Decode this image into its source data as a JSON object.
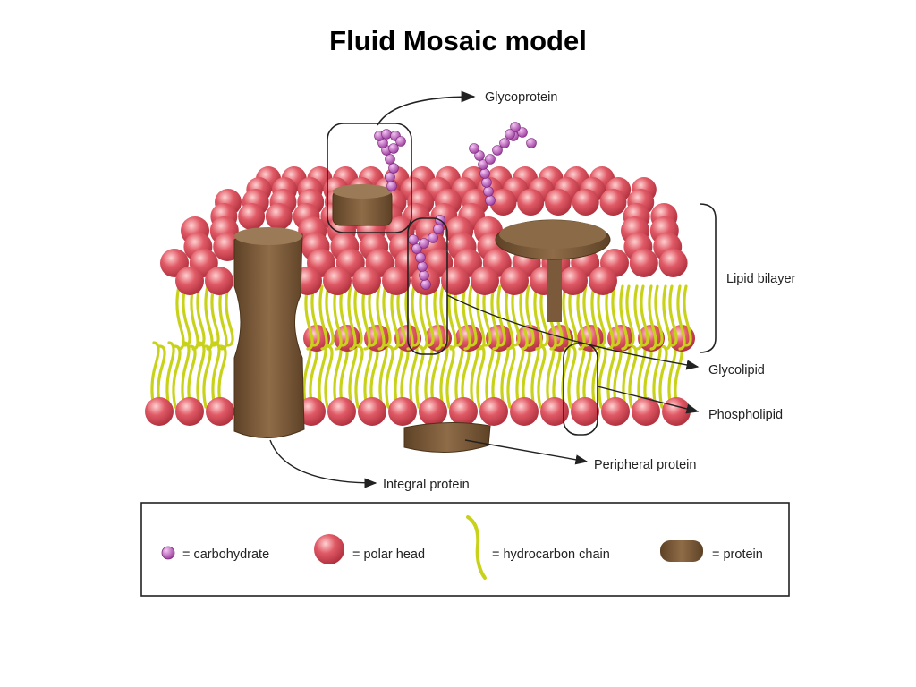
{
  "title": "Fluid Mosaic model",
  "labels": {
    "glycoprotein": "Glycoprotein",
    "lipid_bilayer": "Lipid bilayer",
    "glycolipid": "Glycolipid",
    "phospholipid": "Phospholipid",
    "peripheral_protein": "Peripheral protein",
    "integral_protein": "Integral protein"
  },
  "legend": {
    "carbohydrate": "= carbohydrate",
    "polar_head": "= polar head",
    "hydrocarbon_chain": "= hydrocarbon chain",
    "protein": "= protein"
  },
  "colors": {
    "polar_head": "#d9505d",
    "hydrocarbon_chain": "#c9d21a",
    "protein": "#7a5a3a",
    "carbohydrate": "#b04fb0"
  }
}
